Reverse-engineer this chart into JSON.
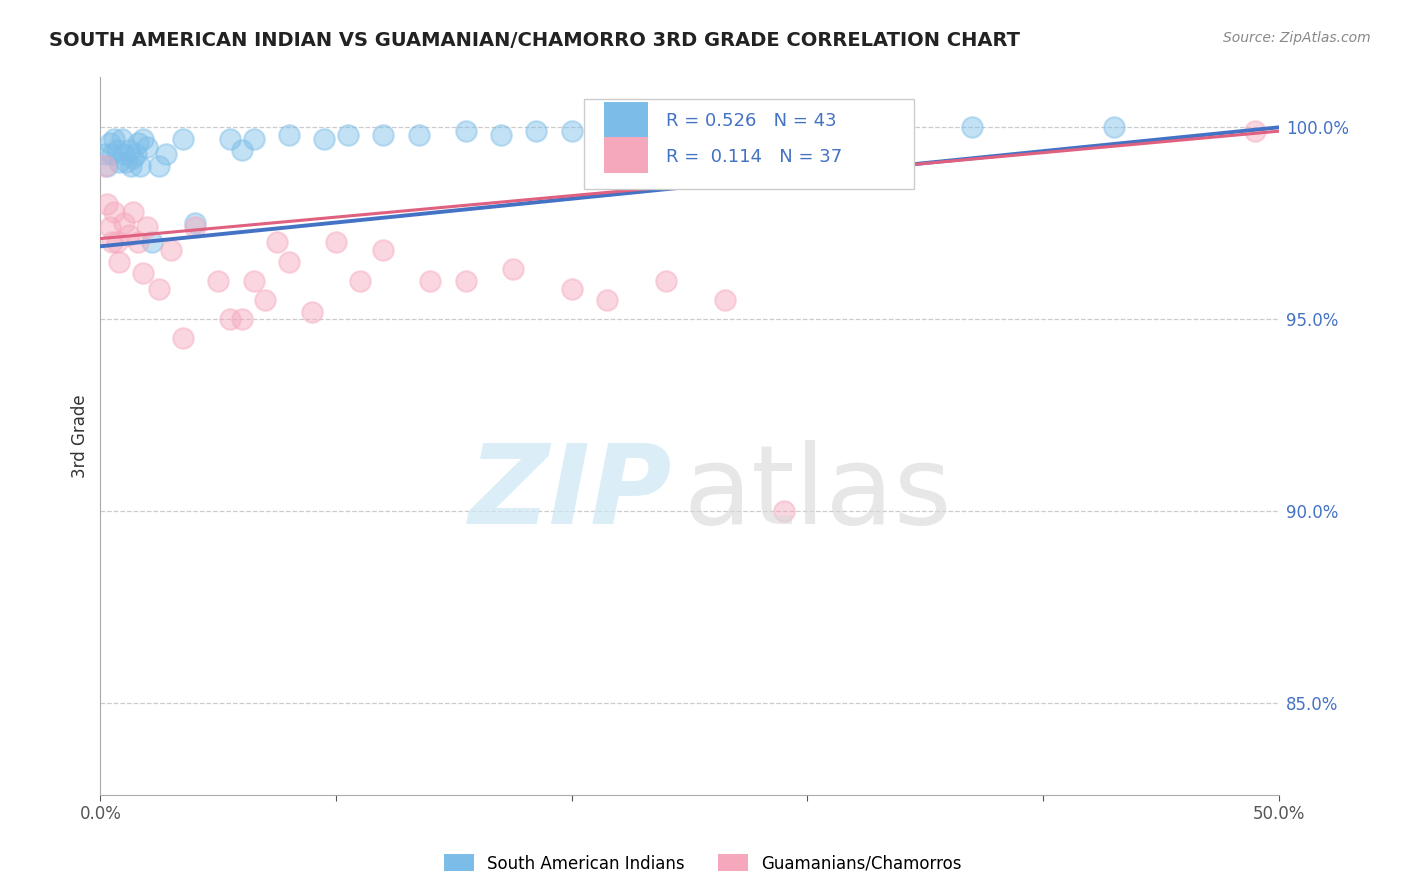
{
  "title": "SOUTH AMERICAN INDIAN VS GUAMANIAN/CHAMORRO 3RD GRADE CORRELATION CHART",
  "source": "Source: ZipAtlas.com",
  "ylabel": "3rd Grade",
  "ylabel_right_labels": [
    "100.0%",
    "95.0%",
    "90.0%",
    "85.0%"
  ],
  "ylabel_right_values": [
    1.0,
    0.95,
    0.9,
    0.85
  ],
  "xlim": [
    0.0,
    0.5
  ],
  "ylim": [
    0.826,
    1.013
  ],
  "R_blue": 0.526,
  "N_blue": 43,
  "R_pink": 0.114,
  "N_pink": 37,
  "blue_color": "#7bbde8",
  "pink_color": "#f5a8bc",
  "blue_line_color": "#4472c4",
  "pink_line_color": "#e06080",
  "legend_label_blue": "South American Indians",
  "legend_label_pink": "Guamanians/Chamorros",
  "blue_x": [
    0.002,
    0.003,
    0.004,
    0.005,
    0.006,
    0.007,
    0.008,
    0.009,
    0.01,
    0.011,
    0.012,
    0.013,
    0.014,
    0.015,
    0.016,
    0.017,
    0.018,
    0.02,
    0.022,
    0.025,
    0.028,
    0.035,
    0.04,
    0.055,
    0.06,
    0.065,
    0.08,
    0.095,
    0.105,
    0.12,
    0.135,
    0.155,
    0.17,
    0.185,
    0.2,
    0.215,
    0.23,
    0.255,
    0.27,
    0.31,
    0.34,
    0.37,
    0.43
  ],
  "blue_y": [
    0.993,
    0.99,
    0.996,
    0.993,
    0.997,
    0.994,
    0.991,
    0.997,
    0.993,
    0.991,
    0.994,
    0.99,
    0.992,
    0.993,
    0.996,
    0.99,
    0.997,
    0.995,
    0.97,
    0.99,
    0.993,
    0.997,
    0.975,
    0.997,
    0.994,
    0.997,
    0.998,
    0.997,
    0.998,
    0.998,
    0.998,
    0.999,
    0.998,
    0.999,
    0.999,
    0.999,
    0.999,
    0.999,
    0.999,
    1.0,
    0.999,
    1.0,
    1.0
  ],
  "pink_x": [
    0.002,
    0.003,
    0.004,
    0.005,
    0.006,
    0.007,
    0.008,
    0.01,
    0.012,
    0.014,
    0.016,
    0.018,
    0.02,
    0.025,
    0.03,
    0.035,
    0.04,
    0.05,
    0.055,
    0.06,
    0.065,
    0.07,
    0.075,
    0.08,
    0.09,
    0.1,
    0.11,
    0.12,
    0.14,
    0.155,
    0.175,
    0.2,
    0.215,
    0.24,
    0.265,
    0.29,
    0.49
  ],
  "pink_y": [
    0.99,
    0.98,
    0.974,
    0.97,
    0.978,
    0.97,
    0.965,
    0.975,
    0.972,
    0.978,
    0.97,
    0.962,
    0.974,
    0.958,
    0.968,
    0.945,
    0.974,
    0.96,
    0.95,
    0.95,
    0.96,
    0.955,
    0.97,
    0.965,
    0.952,
    0.97,
    0.96,
    0.968,
    0.96,
    0.96,
    0.963,
    0.958,
    0.955,
    0.96,
    0.955,
    0.9,
    0.999
  ],
  "grid_color": "#cccccc",
  "spine_color": "#aaaaaa"
}
